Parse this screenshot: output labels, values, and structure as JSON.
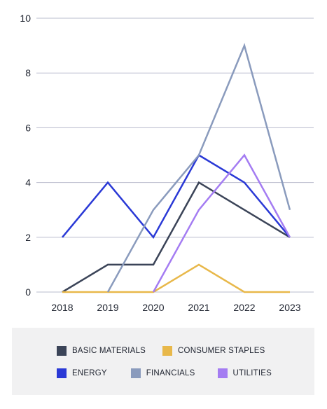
{
  "chart_data": {
    "type": "line",
    "x": [
      "2018",
      "2019",
      "2020",
      "2021",
      "2022",
      "2023"
    ],
    "ylim": [
      0,
      10
    ],
    "yticks": [
      0,
      2,
      4,
      6,
      8,
      10
    ],
    "grid": true,
    "legend_position": "bottom",
    "series": [
      {
        "name": "BASIC MATERIALS",
        "color": "#3b4458",
        "values": [
          0,
          1,
          1,
          4,
          3,
          2
        ]
      },
      {
        "name": "CONSUMER STAPLES",
        "color": "#e8b84a",
        "values": [
          0,
          0,
          0,
          1,
          0,
          0
        ]
      },
      {
        "name": "ENERGY",
        "color": "#2a39d6",
        "values": [
          2,
          4,
          2,
          5,
          4,
          2
        ]
      },
      {
        "name": "FINANCIALS",
        "color": "#8a9bbd",
        "values": [
          null,
          0,
          3,
          5,
          9,
          3
        ]
      },
      {
        "name": "UTILITIES",
        "color": "#a47cf2",
        "values": [
          null,
          null,
          0,
          3,
          5,
          2
        ]
      }
    ]
  },
  "legend": {
    "row1": [
      {
        "label": "BASIC MATERIALS",
        "color": "#3b4458"
      },
      {
        "label": "CONSUMER STAPLES",
        "color": "#e8b84a"
      }
    ],
    "row2": [
      {
        "label": "ENERGY",
        "color": "#2a39d6"
      },
      {
        "label": "FINANCIALS",
        "color": "#8a9bbd"
      },
      {
        "label": "UTILITIES",
        "color": "#a47cf2"
      }
    ]
  }
}
